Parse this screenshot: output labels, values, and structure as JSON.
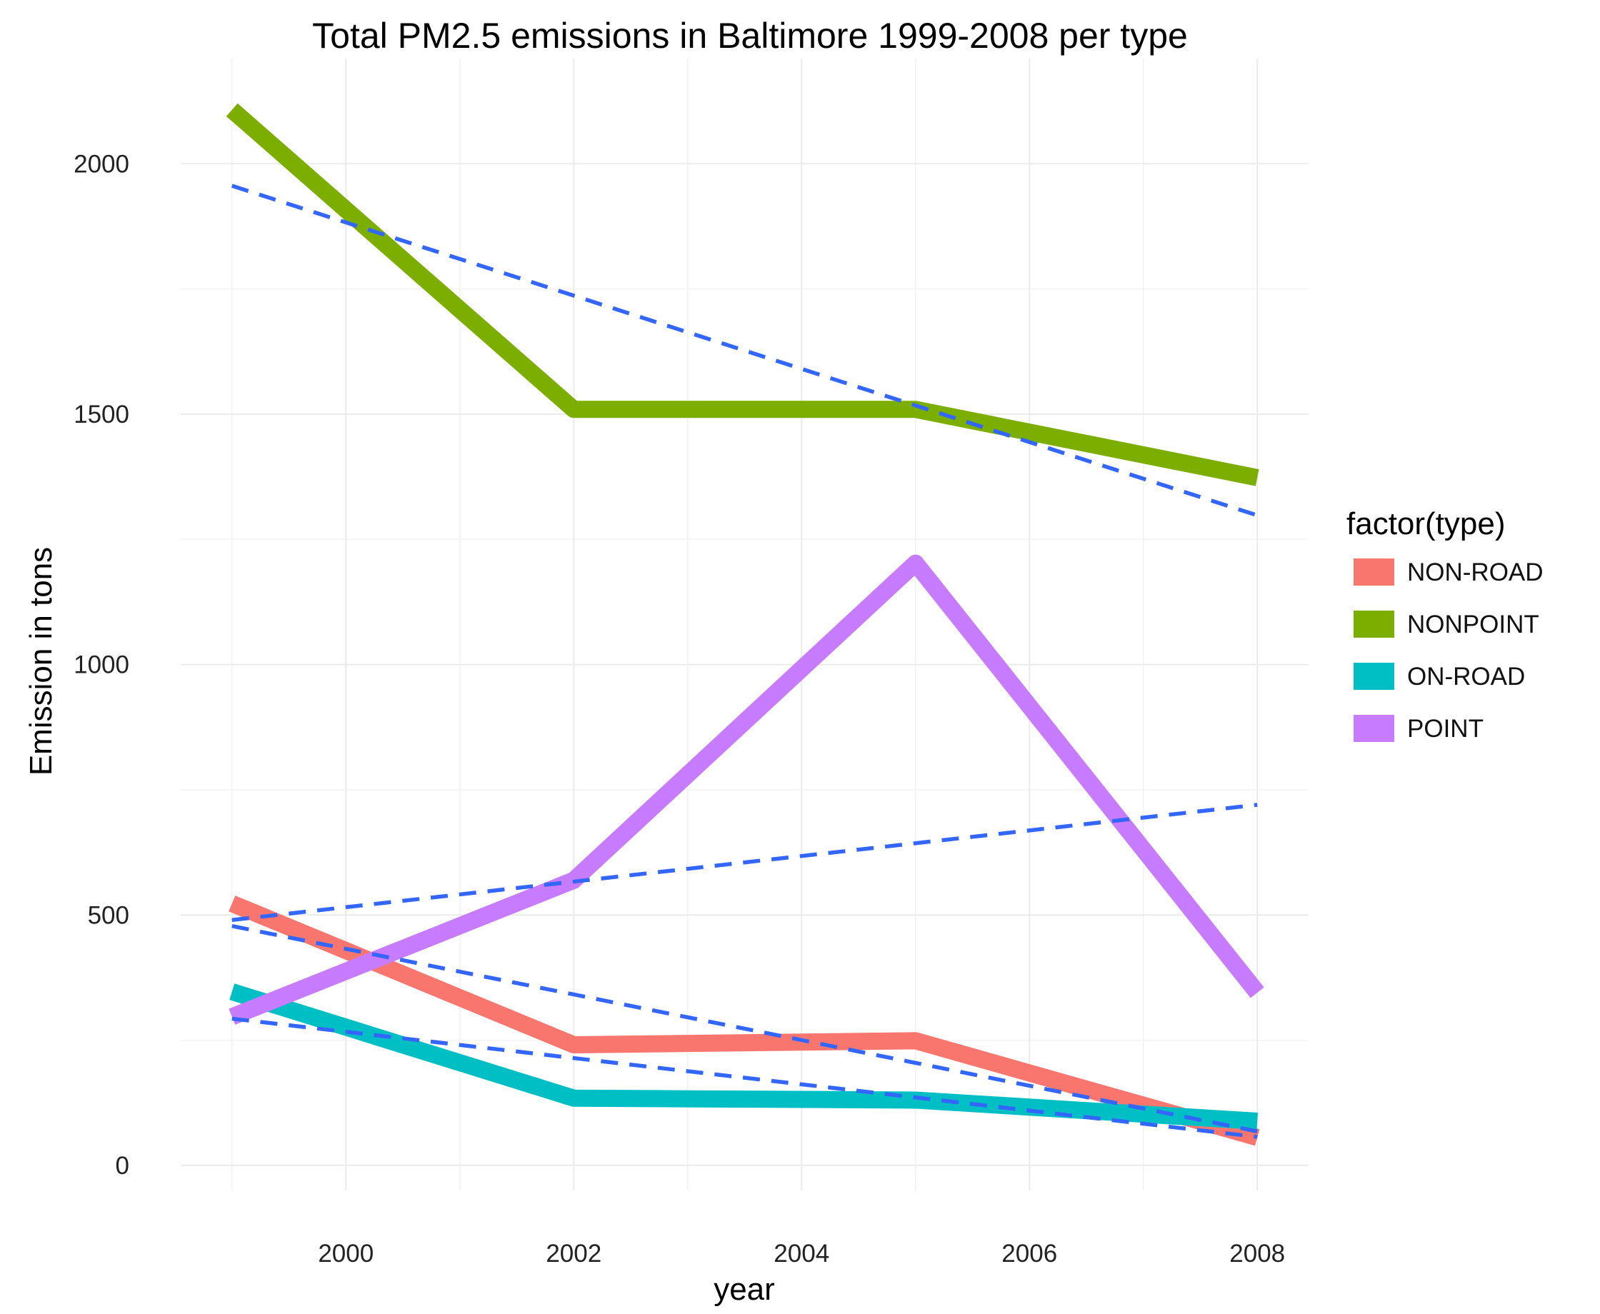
{
  "chart_data": {
    "type": "line",
    "title": "Total PM2.5 emissions in Baltimore 1999-2008 per type",
    "xlabel": "year",
    "ylabel": "Emission in tons",
    "x": [
      1999,
      2002,
      2005,
      2008
    ],
    "xlim": [
      1998.55,
      2008.45
    ],
    "ylim": [
      -50,
      2210
    ],
    "xticks": [
      2000,
      2002,
      2004,
      2006,
      2008
    ],
    "yticks": [
      0,
      500,
      1000,
      1500,
      2000
    ],
    "grid": true,
    "legend": {
      "title": "factor(type)",
      "position": "right"
    },
    "series": [
      {
        "name": "NON-ROAD",
        "color": "#F8766D",
        "values": [
          522.94,
          240.85,
          248.93,
          55.82
        ]
      },
      {
        "name": "NONPOINT",
        "color": "#7CAE00",
        "values": [
          2107.63,
          1509.5,
          1509.5,
          1373.21
        ]
      },
      {
        "name": "ON-ROAD",
        "color": "#00BFC4",
        "values": [
          346.82,
          134.31,
          130.43,
          88.28
        ]
      },
      {
        "name": "POINT",
        "color": "#C77CFF",
        "values": [
          296.8,
          569.26,
          1202.49,
          344.98
        ]
      }
    ],
    "trend_lines": {
      "style": "dashed",
      "color": "#3366FF",
      "lines": [
        {
          "series": "NONPOINT",
          "values": [
            1956,
            1298
          ]
        },
        {
          "series": "POINT",
          "values": [
            490,
            720
          ]
        },
        {
          "series": "NON-ROAD",
          "values": [
            478,
            68
          ]
        },
        {
          "series": "ON-ROAD",
          "values": [
            293,
            57
          ]
        }
      ]
    }
  }
}
